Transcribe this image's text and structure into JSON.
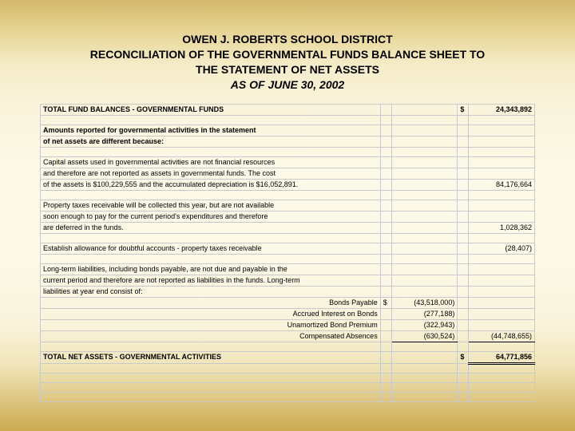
{
  "title": {
    "line1": "OWEN J. ROBERTS SCHOOL DISTRICT",
    "line2": "RECONCILIATION OF THE GOVERNMENTAL FUNDS BALANCE SHEET TO",
    "line3": "THE STATEMENT OF NET ASSETS",
    "line4": "AS OF JUNE 30, 2002"
  },
  "rows": {
    "total_fund_balances": {
      "label": "TOTAL FUND BALANCES - GOVERNMENTAL FUNDS",
      "sym": "$",
      "amount": "24,343,892"
    },
    "intro1": "Amounts reported for governmental activities in the statement",
    "intro2": "of net assets are different because:",
    "cap1": "Capital assets used in governmental activities are not financial resources",
    "cap2": "and therefore are not reported as assets in governmental funds.  The cost",
    "cap3": "of the assets is $100,229,555 and the accumulated depreciation is $16,052,891.",
    "cap_amt": "84,176,664",
    "prop1": "Property taxes receivable will be collected this year, but are not available",
    "prop2": "soon enough to pay for the current period's expenditures and therefore",
    "prop3": "are deferred in the funds.",
    "prop_amt": "1,028,362",
    "allow": "Establish allowance for doubtful accounts - property taxes receivable",
    "allow_amt": "(28,407)",
    "lt1": "Long-term liabilities, including bonds payable, are not due and payable in the",
    "lt2": "current period and therefore are not reported as liabilities in the funds.  Long-term",
    "lt3": "liabilities at year end consist of:",
    "bonds": {
      "label": "Bonds Payable",
      "sym": "$",
      "amt": "(43,518,000)"
    },
    "accrued": {
      "label": "Accrued Interest on Bonds",
      "amt": "(277,188)"
    },
    "unamort": {
      "label": "Unamortized Bond Premium",
      "amt": "(322,943)"
    },
    "compabs": {
      "label": "Compensated Absences",
      "amt": "(630,524)"
    },
    "lt_total": "(44,748,655)",
    "net_assets": {
      "label": "TOTAL NET ASSETS - GOVERNMENTAL ACTIVITIES",
      "sym": "$",
      "amount": "64,771,856"
    }
  },
  "colors": {
    "border": "#c9c9c9",
    "text": "#000000"
  }
}
